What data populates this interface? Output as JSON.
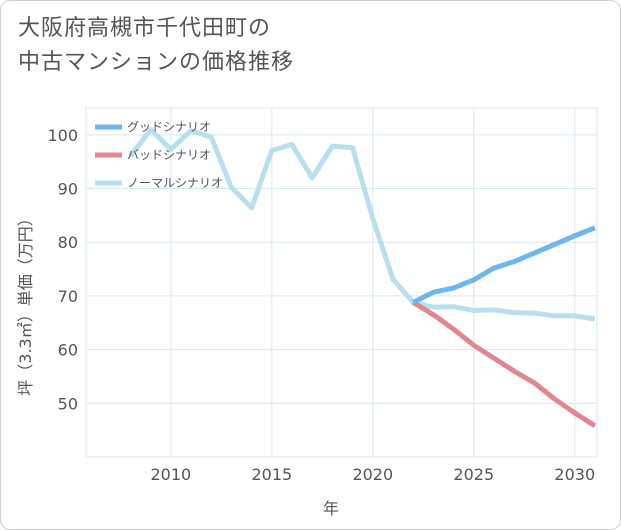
{
  "chart_data": {
    "type": "line",
    "title": [
      "大阪府高槻市千代田町の",
      "中古マンションの価格推移"
    ],
    "xlabel": "年",
    "ylabel": "坪（3.3㎡）単価（万円）",
    "xlim": [
      2005.8,
      2031.1
    ],
    "ylim": [
      40,
      105
    ],
    "xticks": [
      2010,
      2015,
      2020,
      2025,
      2030
    ],
    "yticks": [
      50,
      60,
      70,
      80,
      90,
      100
    ],
    "grid": true,
    "legend_position": "top-left",
    "series": [
      {
        "name": "グッドシナリオ",
        "color": "#6db6ee",
        "x": [
          2022,
          2023,
          2024,
          2025,
          2026,
          2027,
          2028,
          2029,
          2030,
          2031
        ],
        "y": [
          68.8,
          70.7,
          71.5,
          73.0,
          75.2,
          76.4,
          78.0,
          79.6,
          81.2,
          82.7
        ]
      },
      {
        "name": "バッドシナリオ",
        "color": "#e08790",
        "x": [
          2022,
          2023,
          2024,
          2025,
          2026,
          2027,
          2028,
          2029,
          2030,
          2031
        ],
        "y": [
          68.8,
          66.5,
          63.8,
          60.8,
          58.4,
          56.0,
          53.8,
          50.8,
          48.2,
          45.8
        ]
      },
      {
        "name": "ノーマルシナリオ",
        "color": "#b7dff0",
        "x": [
          2008,
          2009,
          2010,
          2011,
          2012,
          2013,
          2014,
          2015,
          2016,
          2017,
          2018,
          2019,
          2020,
          2021,
          2022,
          2023,
          2024,
          2025,
          2026,
          2027,
          2028,
          2029,
          2030,
          2031
        ],
        "y": [
          96.0,
          101.0,
          97.3,
          100.8,
          99.6,
          90.2,
          86.4,
          97.1,
          98.2,
          92.0,
          97.9,
          97.6,
          84.4,
          73.1,
          68.8,
          67.9,
          68.0,
          67.3,
          67.4,
          66.9,
          66.8,
          66.3,
          66.3,
          65.7
        ]
      }
    ]
  }
}
